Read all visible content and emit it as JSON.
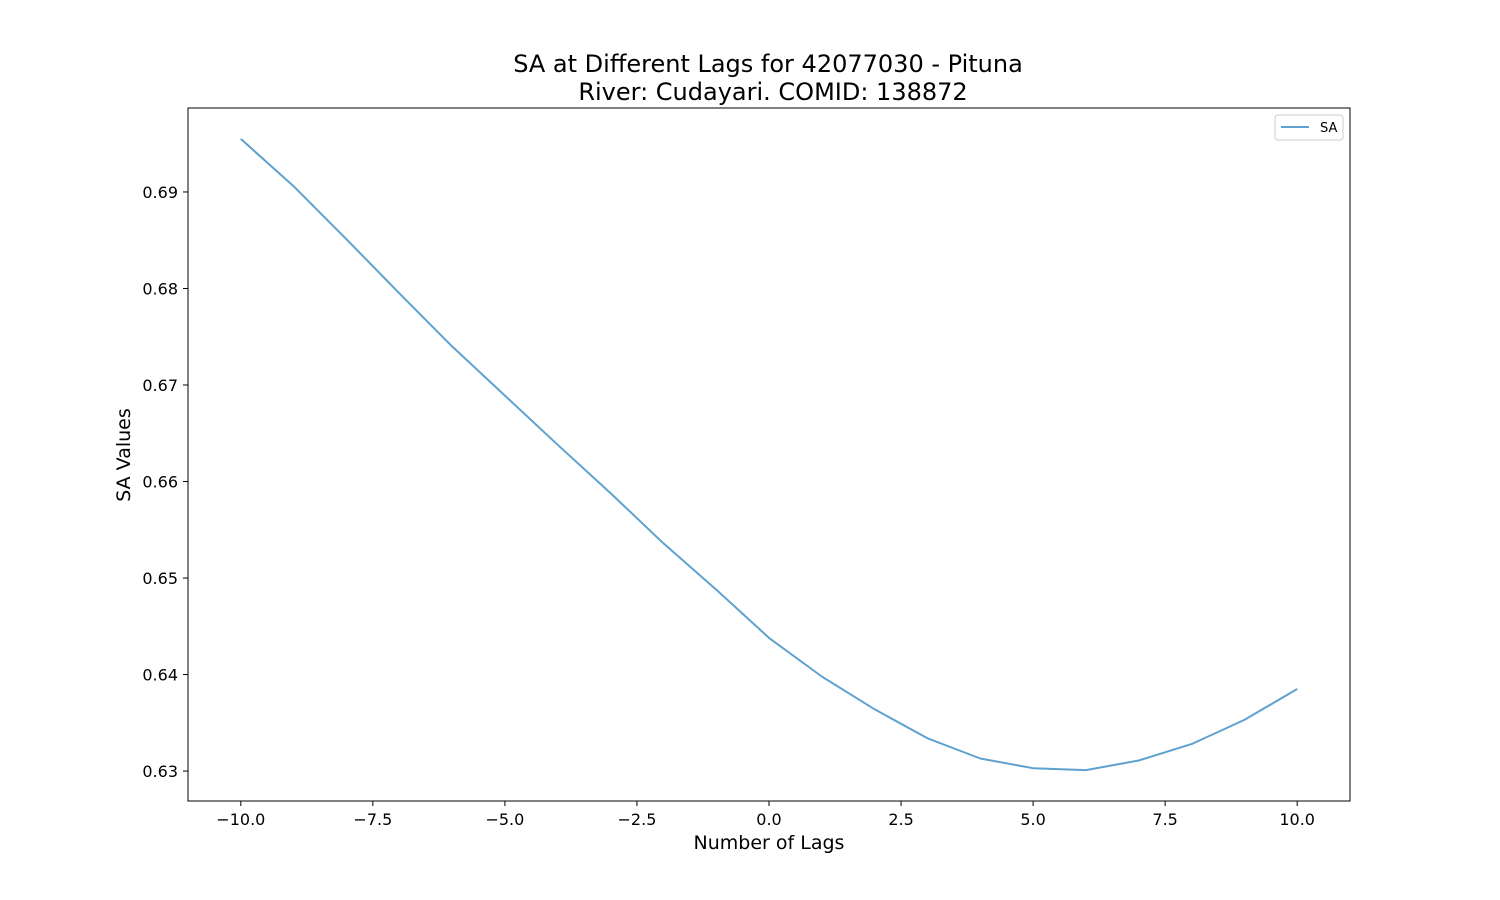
{
  "chart_data": {
    "type": "line",
    "title": "SA at Different Lags for 42077030 - Pituna",
    "subtitle": "River: Cudayari. COMID: 138872",
    "xlabel": "Number of Lags",
    "ylabel": "SA Values",
    "xlim": [
      -11,
      11
    ],
    "ylim": [
      0.6269,
      0.6987
    ],
    "x_ticks": [
      -10.0,
      -7.5,
      -5.0,
      -2.5,
      0.0,
      2.5,
      5.0,
      7.5,
      10.0
    ],
    "x_tick_labels": [
      "−10.0",
      "−7.5",
      "−5.0",
      "−2.5",
      "0.0",
      "2.5",
      "5.0",
      "7.5",
      "10.0"
    ],
    "y_ticks": [
      0.63,
      0.64,
      0.65,
      0.66,
      0.67,
      0.68,
      0.69
    ],
    "y_tick_labels": [
      "0.63",
      "0.64",
      "0.65",
      "0.66",
      "0.67",
      "0.68",
      "0.69"
    ],
    "grid": false,
    "legend_position": "top-right",
    "series": [
      {
        "name": "SA",
        "color": "#5fa2cf",
        "x": [
          -10,
          -9,
          -8,
          -7,
          -6,
          -5,
          -4,
          -3,
          -2,
          -1,
          0,
          1,
          2,
          3,
          4,
          5,
          6,
          7,
          8,
          9,
          10
        ],
        "values": [
          0.6955,
          0.6906,
          0.6851,
          0.6795,
          0.674,
          0.6689,
          0.6638,
          0.6588,
          0.6536,
          0.6488,
          0.6438,
          0.6398,
          0.6364,
          0.6334,
          0.6313,
          0.6303,
          0.6301,
          0.6311,
          0.6328,
          0.6353,
          0.6385
        ]
      }
    ]
  }
}
